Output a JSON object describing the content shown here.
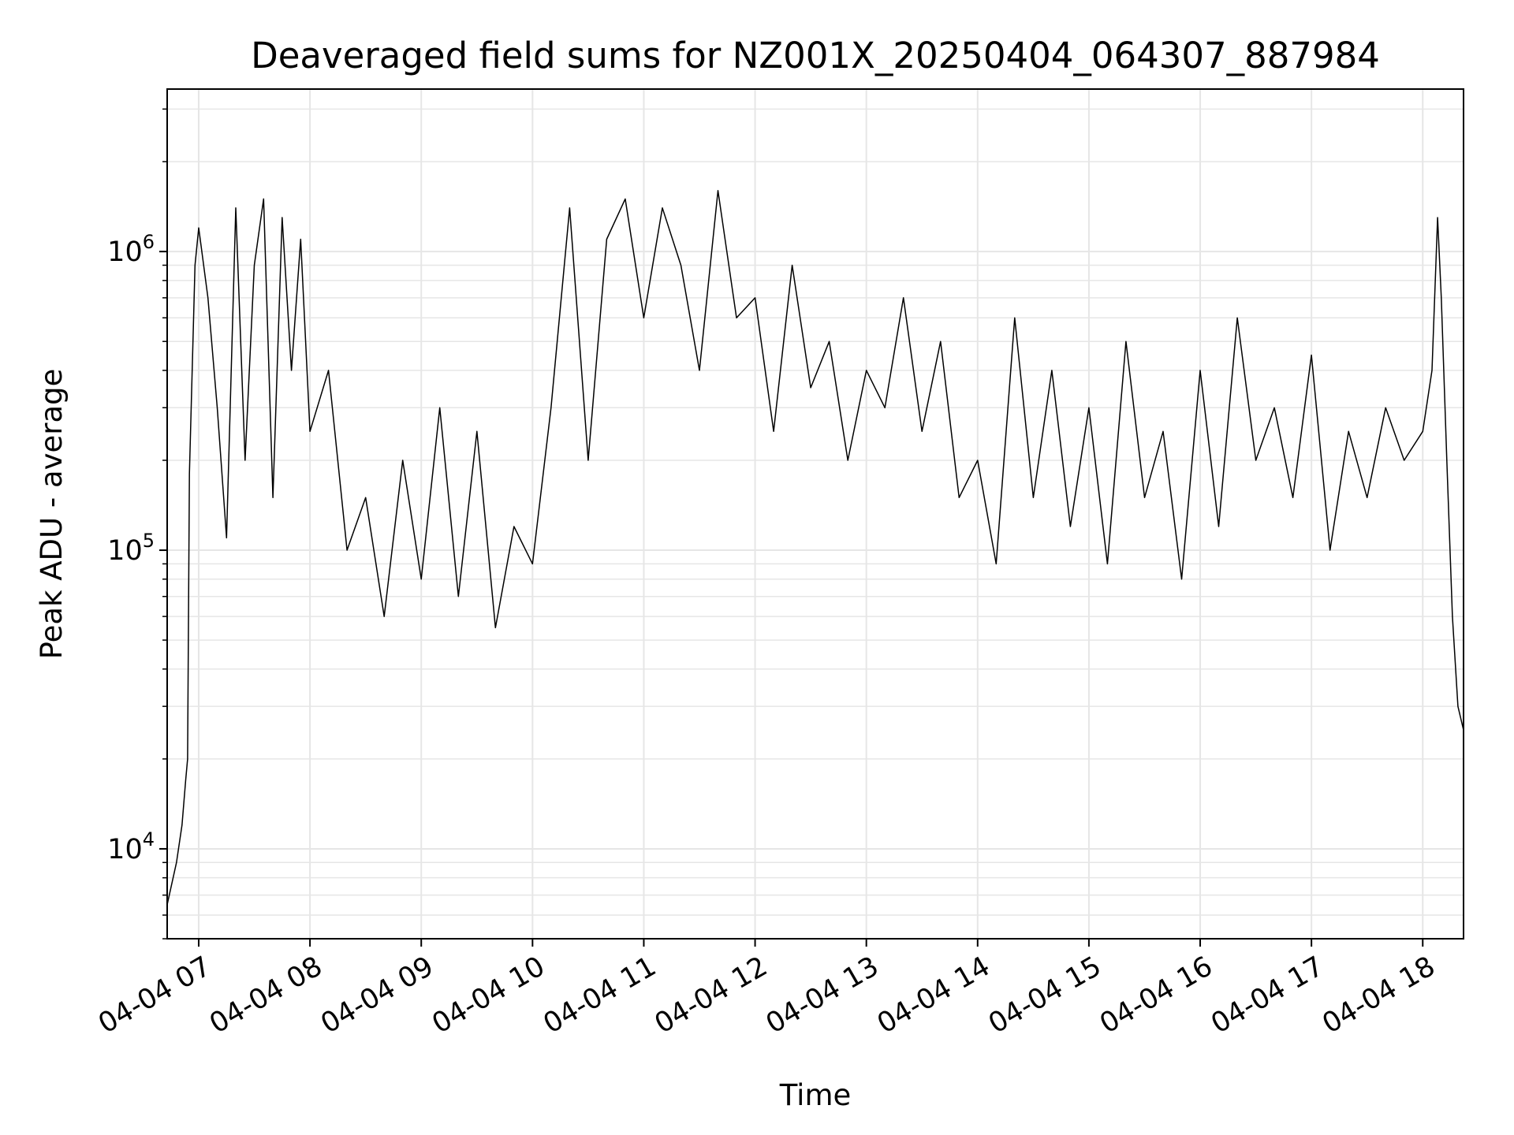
{
  "chart_data": {
    "type": "line",
    "title": "Deaveraged field sums for NZ001X_20250404_064307_887984",
    "xlabel": "Time",
    "ylabel": "Peak ADU - average",
    "yscale": "log",
    "ylim": [
      5000,
      3500000
    ],
    "xlim": [
      "2025-04-04 06:43",
      "2025-04-04 18:22"
    ],
    "grid": true,
    "line_color": "#000000",
    "grid_color": "#e6e6e6",
    "x_ticks": [
      {
        "label": "04-04 07",
        "value": "2025-04-04 07:00"
      },
      {
        "label": "04-04 08",
        "value": "2025-04-04 08:00"
      },
      {
        "label": "04-04 09",
        "value": "2025-04-04 09:00"
      },
      {
        "label": "04-04 10",
        "value": "2025-04-04 10:00"
      },
      {
        "label": "04-04 11",
        "value": "2025-04-04 11:00"
      },
      {
        "label": "04-04 12",
        "value": "2025-04-04 12:00"
      },
      {
        "label": "04-04 13",
        "value": "2025-04-04 13:00"
      },
      {
        "label": "04-04 14",
        "value": "2025-04-04 14:00"
      },
      {
        "label": "04-04 15",
        "value": "2025-04-04 15:00"
      },
      {
        "label": "04-04 16",
        "value": "2025-04-04 16:00"
      },
      {
        "label": "04-04 17",
        "value": "2025-04-04 17:00"
      },
      {
        "label": "04-04 18",
        "value": "2025-04-04 18:00"
      }
    ],
    "y_ticks": [
      {
        "value": 10000,
        "base": "10",
        "exponent": "4"
      },
      {
        "value": 100000,
        "base": "10",
        "exponent": "5"
      },
      {
        "value": 1000000,
        "base": "10",
        "exponent": "6"
      }
    ],
    "series": [
      {
        "x": [
          "2025-04-04 06:43",
          "2025-04-04 06:48",
          "2025-04-04 06:51",
          "2025-04-04 06:53",
          "2025-04-04 06:54",
          "2025-04-04 06:55",
          "2025-04-04 06:58",
          "2025-04-04 07:00",
          "2025-04-04 07:05",
          "2025-04-04 07:10",
          "2025-04-04 07:15",
          "2025-04-04 07:20",
          "2025-04-04 07:25",
          "2025-04-04 07:30",
          "2025-04-04 07:35",
          "2025-04-04 07:40",
          "2025-04-04 07:45",
          "2025-04-04 07:50",
          "2025-04-04 07:55",
          "2025-04-04 08:00",
          "2025-04-04 08:10",
          "2025-04-04 08:20",
          "2025-04-04 08:30",
          "2025-04-04 08:40",
          "2025-04-04 08:50",
          "2025-04-04 09:00",
          "2025-04-04 09:10",
          "2025-04-04 09:20",
          "2025-04-04 09:30",
          "2025-04-04 09:40",
          "2025-04-04 09:50",
          "2025-04-04 10:00",
          "2025-04-04 10:10",
          "2025-04-04 10:20",
          "2025-04-04 10:30",
          "2025-04-04 10:40",
          "2025-04-04 10:50",
          "2025-04-04 11:00",
          "2025-04-04 11:10",
          "2025-04-04 11:20",
          "2025-04-04 11:30",
          "2025-04-04 11:40",
          "2025-04-04 11:50",
          "2025-04-04 12:00",
          "2025-04-04 12:10",
          "2025-04-04 12:20",
          "2025-04-04 12:30",
          "2025-04-04 12:40",
          "2025-04-04 12:50",
          "2025-04-04 13:00",
          "2025-04-04 13:10",
          "2025-04-04 13:20",
          "2025-04-04 13:30",
          "2025-04-04 13:40",
          "2025-04-04 13:50",
          "2025-04-04 14:00",
          "2025-04-04 14:10",
          "2025-04-04 14:20",
          "2025-04-04 14:30",
          "2025-04-04 14:40",
          "2025-04-04 14:50",
          "2025-04-04 15:00",
          "2025-04-04 15:10",
          "2025-04-04 15:20",
          "2025-04-04 15:30",
          "2025-04-04 15:40",
          "2025-04-04 15:50",
          "2025-04-04 16:00",
          "2025-04-04 16:10",
          "2025-04-04 16:20",
          "2025-04-04 16:30",
          "2025-04-04 16:40",
          "2025-04-04 16:50",
          "2025-04-04 17:00",
          "2025-04-04 17:10",
          "2025-04-04 17:20",
          "2025-04-04 17:30",
          "2025-04-04 17:40",
          "2025-04-04 17:50",
          "2025-04-04 18:00",
          "2025-04-04 18:05",
          "2025-04-04 18:08",
          "2025-04-04 18:10",
          "2025-04-04 18:13",
          "2025-04-04 18:16",
          "2025-04-04 18:19",
          "2025-04-04 18:22"
        ],
        "y": [
          6500,
          9000,
          12000,
          17000,
          20000,
          180000,
          900000,
          1200000,
          700000,
          300000,
          110000,
          1400000,
          200000,
          900000,
          1500000,
          150000,
          1300000,
          400000,
          1100000,
          250000,
          400000,
          100000,
          150000,
          60000,
          200000,
          80000,
          300000,
          70000,
          250000,
          55000,
          120000,
          90000,
          300000,
          1400000,
          200000,
          1100000,
          1500000,
          600000,
          1400000,
          900000,
          400000,
          1600000,
          600000,
          700000,
          250000,
          900000,
          350000,
          500000,
          200000,
          400000,
          300000,
          700000,
          250000,
          500000,
          150000,
          200000,
          90000,
          600000,
          150000,
          400000,
          120000,
          300000,
          90000,
          500000,
          150000,
          250000,
          80000,
          400000,
          120000,
          600000,
          200000,
          300000,
          150000,
          450000,
          100000,
          250000,
          150000,
          300000,
          200000,
          250000,
          400000,
          1300000,
          700000,
          200000,
          60000,
          30000,
          25000
        ]
      }
    ]
  }
}
